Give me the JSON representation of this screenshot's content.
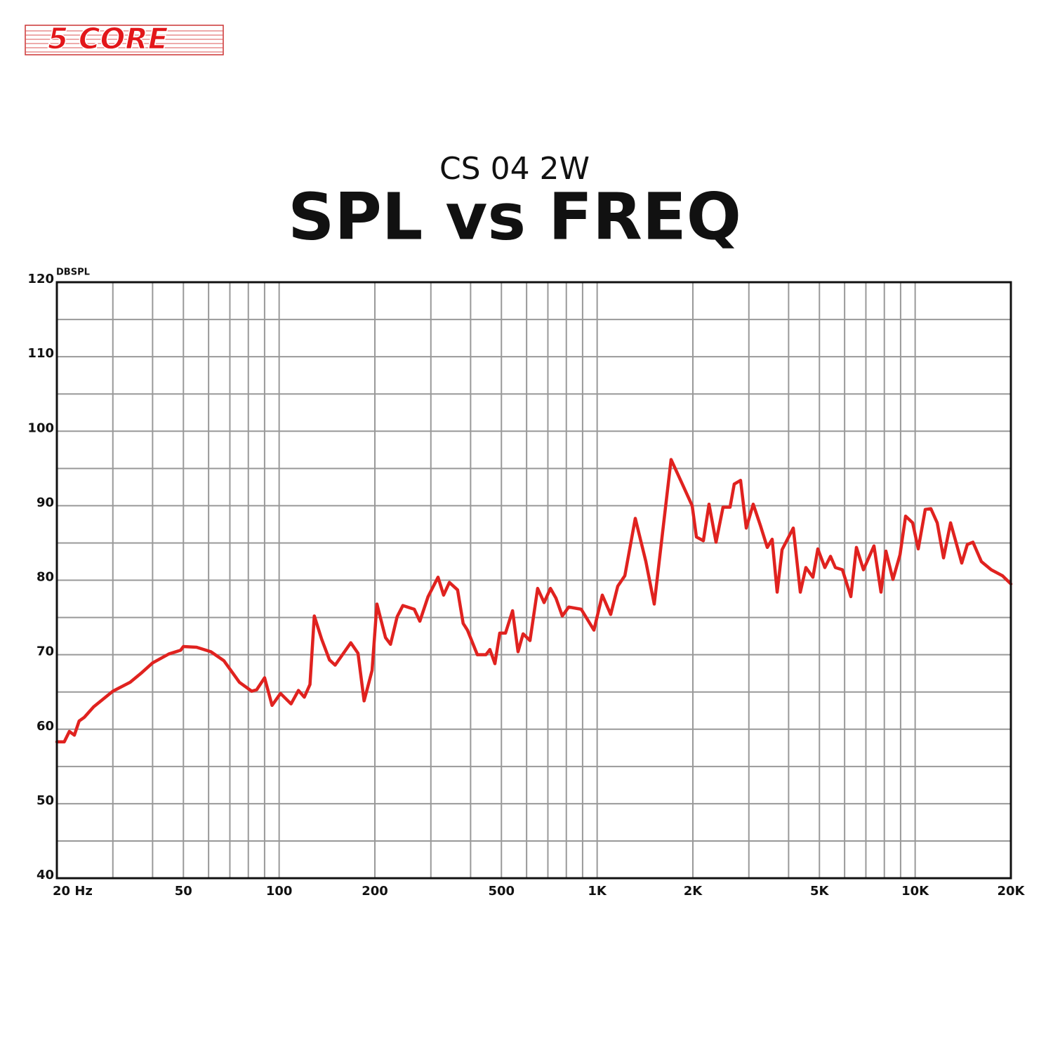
{
  "logo": "5 CORE",
  "chart_data": {
    "type": "line",
    "title": "CS 04 2W",
    "subtitle": "SPL vs FREQ",
    "y_label": "DBSPL",
    "x_scale": "log",
    "xlim": [
      20,
      20000
    ],
    "ylim": [
      40,
      120
    ],
    "xticks": [
      {
        "value": 20,
        "label": "20 Hz"
      },
      50,
      100,
      200,
      500,
      {
        "value": 1000,
        "label": "1K"
      },
      {
        "value": 2000,
        "label": "2K"
      },
      {
        "value": 5000,
        "label": "5K"
      },
      {
        "value": 10000,
        "label": "10K"
      },
      {
        "value": 20000,
        "label": "20K"
      }
    ],
    "yticks": [
      40,
      50,
      60,
      70,
      80,
      90,
      100,
      110,
      120
    ],
    "x_minor_grid": [
      30,
      40,
      60,
      70,
      80,
      90,
      300,
      400,
      600,
      700,
      800,
      900,
      3000,
      4000,
      6000,
      7000,
      8000,
      9000
    ],
    "y_minor_grid": [
      45,
      55,
      65,
      75,
      85,
      95,
      105,
      115
    ],
    "grid": true,
    "color": "#e0221f",
    "x": [
      20,
      21.1,
      21.9,
      22.7,
      23.5,
      24.4,
      26.1,
      30,
      34,
      37,
      40,
      45,
      49,
      50,
      55,
      61,
      67,
      75,
      82,
      85,
      90,
      95,
      101,
      109,
      115,
      120,
      125,
      129,
      136,
      144,
      150,
      168,
      177,
      185,
      196,
      203,
      216,
      224,
      235,
      245,
      266,
      277,
      294,
      316,
      329,
      343,
      364,
      379,
      391,
      420,
      447,
      460,
      477,
      494,
      515,
      542,
      564,
      585,
      615,
      650,
      681,
      713,
      742,
      777,
      814,
      891,
      977,
      1038,
      1103,
      1161,
      1222,
      1318,
      1423,
      1512,
      1708,
      1853,
      1990,
      2052,
      2158,
      2248,
      2365,
      2488,
      2618,
      2698,
      2825,
      2944,
      3096,
      3258,
      3428,
      3551,
      3682,
      3815,
      4138,
      4354,
      4533,
      4770,
      4943,
      5200,
      5418,
      5612,
      5906,
      6277,
      6537,
      6878,
      7422,
      7809,
      8093,
      8515,
      8960,
      9333,
      9820,
      10226,
      10760,
      11206,
      11733,
      12282,
      12924,
      13521,
      14012,
      14592,
      15200,
      16155,
      17348,
      18816,
      20000
    ],
    "values": [
      58.3,
      58.3,
      59.7,
      59.2,
      61.1,
      61.6,
      63.0,
      65.1,
      66.3,
      67.6,
      68.9,
      70.1,
      70.6,
      71.1,
      71.0,
      70.4,
      69.2,
      66.3,
      65.1,
      65.3,
      66.9,
      63.2,
      64.8,
      63.4,
      65.2,
      64.3,
      66.0,
      75.2,
      72.1,
      69.3,
      68.6,
      71.6,
      70.2,
      63.8,
      67.9,
      76.8,
      72.3,
      71.4,
      75.1,
      76.6,
      76.1,
      74.5,
      77.8,
      80.4,
      78.0,
      79.7,
      78.7,
      74.2,
      73.3,
      70.0,
      70.0,
      70.7,
      68.8,
      72.9,
      72.9,
      75.9,
      70.4,
      72.8,
      71.9,
      78.9,
      77.0,
      78.9,
      77.6,
      75.2,
      76.4,
      76.1,
      73.3,
      78.0,
      75.4,
      79.2,
      80.6,
      88.3,
      82.5,
      76.8,
      96.2,
      92.9,
      90.0,
      85.8,
      85.3,
      90.2,
      85.1,
      89.8,
      89.8,
      92.9,
      93.4,
      87.0,
      90.2,
      87.4,
      84.4,
      85.5,
      78.4,
      84.1,
      87.0,
      78.4,
      81.7,
      80.4,
      84.2,
      81.7,
      83.2,
      81.7,
      81.4,
      77.8,
      84.4,
      81.4,
      84.6,
      78.4,
      83.9,
      80.1,
      83.4,
      88.6,
      87.7,
      84.2,
      89.5,
      89.6,
      87.7,
      83.0,
      87.7,
      84.7,
      82.3,
      84.8,
      85.1,
      82.5,
      81.4,
      80.6,
      79.5
    ]
  }
}
